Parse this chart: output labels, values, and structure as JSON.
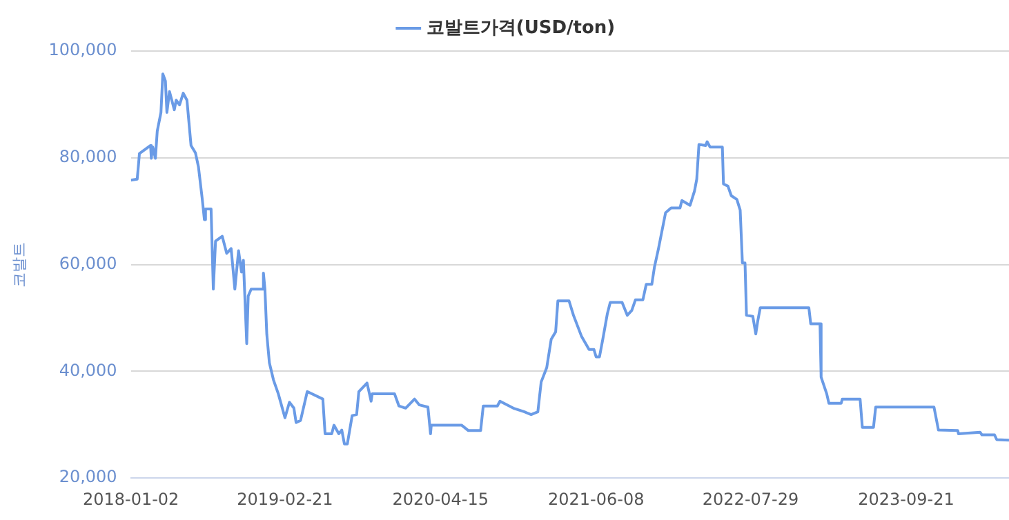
{
  "chart_data": {
    "type": "line",
    "ylabel": "코발트",
    "legend": "top",
    "grid": "y",
    "marker": "none",
    "line_style": "solid",
    "xlim": [
      "2018-01-02",
      "2024-06-24"
    ],
    "xticks": [
      "2018-01-02",
      "2019-02-21",
      "2020-04-15",
      "2021-06-08",
      "2022-07-29",
      "2023-09-21"
    ],
    "ylim": [
      20000,
      100000
    ],
    "yticks": [
      {
        "value": 20000,
        "label": "20,000"
      },
      {
        "value": 40000,
        "label": "40,000"
      },
      {
        "value": 60000,
        "label": "60,000"
      },
      {
        "value": 80000,
        "label": "80,000"
      },
      {
        "value": 100000,
        "label": "100,000"
      }
    ],
    "x": [
      "2018-01-02",
      "2018-01-19",
      "2018-01-23",
      "2018-01-25",
      "2018-02-24",
      "2018-02-26",
      "2018-03-02",
      "2018-03-09",
      "2018-03-14",
      "2018-03-24",
      "2018-03-29",
      "2018-04-05",
      "2018-04-09",
      "2018-04-16",
      "2018-04-29",
      "2018-05-04",
      "2018-05-13",
      "2018-05-23",
      "2018-06-02",
      "2018-06-13",
      "2018-06-25",
      "2018-07-03",
      "2018-07-13",
      "2018-07-19",
      "2018-07-22",
      "2018-08-06",
      "2018-08-12",
      "2018-08-18",
      "2018-09-05",
      "2018-09-17",
      "2018-09-29",
      "2018-10-09",
      "2018-10-19",
      "2018-10-27",
      "2018-11-01",
      "2018-11-10",
      "2018-11-14",
      "2018-11-22",
      "2018-12-22",
      "2018-12-25",
      "2018-12-29",
      "2019-01-03",
      "2019-01-10",
      "2019-01-21",
      "2019-02-03",
      "2019-02-21",
      "2019-03-05",
      "2019-03-17",
      "2019-03-23",
      "2019-04-04",
      "2019-04-22",
      "2019-06-03",
      "2019-06-09",
      "2019-06-27",
      "2019-07-03",
      "2019-07-16",
      "2019-07-24",
      "2019-07-31",
      "2019-08-08",
      "2019-08-21",
      "2019-09-02",
      "2019-09-08",
      "2019-09-30",
      "2019-10-11",
      "2019-10-14",
      "2019-12-13",
      "2019-12-25",
      "2020-01-12",
      "2020-02-05",
      "2020-02-18",
      "2020-03-12",
      "2020-03-19",
      "2020-03-21",
      "2020-06-11",
      "2020-06-29",
      "2020-08-01",
      "2020-08-08",
      "2020-09-15",
      "2020-09-22",
      "2020-10-28",
      "2020-11-27",
      "2020-12-15",
      "2021-01-02",
      "2021-01-11",
      "2021-01-26",
      "2021-02-07",
      "2021-02-19",
      "2021-02-25",
      "2021-03-27",
      "2021-04-08",
      "2021-04-30",
      "2021-05-20",
      "2021-06-02",
      "2021-06-08",
      "2021-06-17",
      "2021-06-26",
      "2021-07-08",
      "2021-07-16",
      "2021-08-17",
      "2021-08-31",
      "2021-09-12",
      "2021-09-22",
      "2021-10-12",
      "2021-10-21",
      "2021-11-05",
      "2021-11-12",
      "2021-11-23",
      "2021-12-12",
      "2021-12-27",
      "2022-01-20",
      "2022-01-25",
      "2022-02-16",
      "2022-02-28",
      "2022-03-06",
      "2022-03-12",
      "2022-03-30",
      "2022-04-03",
      "2022-04-11",
      "2022-05-14",
      "2022-05-17",
      "2022-05-29",
      "2022-06-07",
      "2022-06-22",
      "2022-07-01",
      "2022-07-07",
      "2022-07-14",
      "2022-07-18",
      "2022-08-04",
      "2022-08-12",
      "2022-08-17",
      "2022-08-24",
      "2023-01-02",
      "2023-01-07",
      "2023-02-01",
      "2023-02-04",
      "2023-02-19",
      "2023-02-25",
      "2023-03-30",
      "2023-04-02",
      "2023-05-20",
      "2023-05-26",
      "2023-06-25",
      "2023-07-01",
      "2023-12-05",
      "2023-12-17",
      "2024-02-07",
      "2024-02-09",
      "2024-04-07",
      "2024-04-12",
      "2024-05-16",
      "2024-05-22",
      "2024-06-24"
    ],
    "series": [
      {
        "name": "코발트가격(USD/ton)",
        "color": "#6a9be6",
        "values": [
          75800,
          76000,
          79100,
          80800,
          82300,
          79900,
          82000,
          79900,
          85000,
          88500,
          95700,
          94400,
          88500,
          92400,
          89000,
          90800,
          89900,
          92100,
          90800,
          82300,
          80900,
          78300,
          72400,
          68400,
          70400,
          70400,
          55400,
          64400,
          65300,
          62100,
          63000,
          55400,
          62600,
          58600,
          60800,
          45200,
          54100,
          55400,
          55400,
          58400,
          55400,
          47000,
          41600,
          38400,
          35800,
          31300,
          34200,
          33100,
          30400,
          30800,
          36200,
          34800,
          28300,
          28300,
          29900,
          28300,
          29000,
          26400,
          26400,
          31700,
          31900,
          36200,
          37800,
          34400,
          35800,
          35800,
          33500,
          33100,
          34800,
          33700,
          33300,
          28300,
          29900,
          29900,
          28900,
          28900,
          33500,
          33500,
          34400,
          33100,
          32400,
          31900,
          32400,
          38000,
          40700,
          46000,
          47400,
          53200,
          53200,
          50500,
          46500,
          44100,
          44100,
          42700,
          42700,
          46000,
          50700,
          52900,
          52900,
          50500,
          51400,
          53400,
          53400,
          56300,
          56300,
          59500,
          63000,
          69700,
          70600,
          70600,
          72000,
          71100,
          73800,
          76000,
          82500,
          82300,
          83000,
          82000,
          82000,
          75100,
          74700,
          72900,
          72200,
          70200,
          60300,
          60300,
          50500,
          50300,
          47000,
          49300,
          51900,
          51900,
          48900,
          48900,
          38900,
          35800,
          34000,
          34000,
          34800,
          34800,
          29500,
          29500,
          33300,
          33300,
          29000,
          28900,
          28300,
          28600,
          28100,
          28100,
          27200,
          27100
        ]
      }
    ]
  }
}
